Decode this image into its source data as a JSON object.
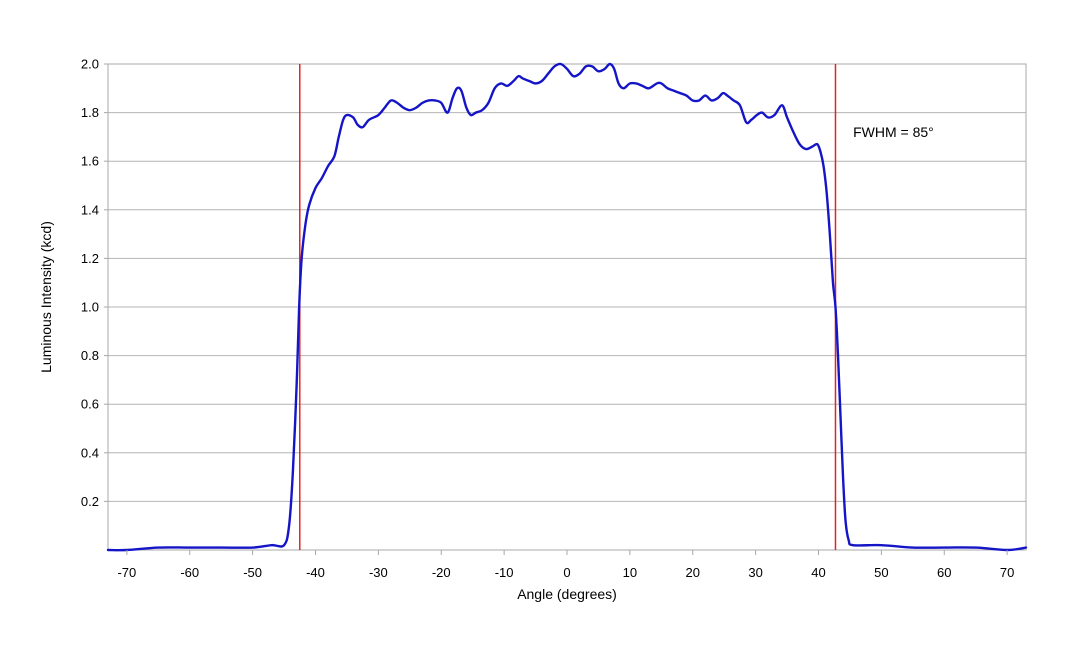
{
  "chart_data": {
    "type": "line",
    "title": "",
    "xlabel": "Angle (degrees)",
    "ylabel": "Luminous Intensity (kcd)",
    "xlim": [
      -73,
      73
    ],
    "ylim": [
      0,
      2.0
    ],
    "grid": "horizontal",
    "legend": "none",
    "x_ticks": [
      -70,
      -60,
      -50,
      -40,
      -30,
      -20,
      -10,
      0,
      10,
      20,
      30,
      40,
      50,
      60,
      70
    ],
    "x_tick_labels": [
      "-70",
      "-60",
      "-50",
      "-40",
      "-30",
      "-20",
      "-10",
      "0",
      "10",
      "20",
      "30",
      "40",
      "50",
      "60",
      "70"
    ],
    "y_ticks": [
      0.2,
      0.4,
      0.6,
      0.8,
      1.0,
      1.2,
      1.4,
      1.6,
      1.8,
      2.0
    ],
    "y_tick_labels": [
      "0.2",
      "0.4",
      "0.6",
      "0.8",
      "1.0",
      "1.2",
      "1.4",
      "1.6",
      "1.8",
      "2.0"
    ],
    "series": [
      {
        "color": "#1515c8",
        "points": [
          [
            -73,
            0.0
          ],
          [
            -70,
            0.0
          ],
          [
            -65,
            0.01
          ],
          [
            -60,
            0.01
          ],
          [
            -55,
            0.01
          ],
          [
            -50,
            0.01
          ],
          [
            -47,
            0.02
          ],
          [
            -45,
            0.02
          ],
          [
            -44.2,
            0.1
          ],
          [
            -43.6,
            0.32
          ],
          [
            -43,
            0.68
          ],
          [
            -42.6,
            1.0
          ],
          [
            -42.2,
            1.2
          ],
          [
            -41.6,
            1.34
          ],
          [
            -41,
            1.42
          ],
          [
            -40,
            1.49
          ],
          [
            -39,
            1.53
          ],
          [
            -38,
            1.58
          ],
          [
            -37,
            1.62
          ],
          [
            -36.3,
            1.7
          ],
          [
            -35.6,
            1.77
          ],
          [
            -35,
            1.79
          ],
          [
            -34,
            1.78
          ],
          [
            -33.3,
            1.75
          ],
          [
            -32.5,
            1.74
          ],
          [
            -31.5,
            1.77
          ],
          [
            -30,
            1.79
          ],
          [
            -29,
            1.82
          ],
          [
            -28,
            1.85
          ],
          [
            -27,
            1.84
          ],
          [
            -26,
            1.82
          ],
          [
            -25,
            1.81
          ],
          [
            -24,
            1.82
          ],
          [
            -23,
            1.84
          ],
          [
            -22,
            1.85
          ],
          [
            -21,
            1.85
          ],
          [
            -20,
            1.84
          ],
          [
            -19,
            1.8
          ],
          [
            -18.2,
            1.86
          ],
          [
            -17.5,
            1.9
          ],
          [
            -16.8,
            1.89
          ],
          [
            -16,
            1.82
          ],
          [
            -15.3,
            1.79
          ],
          [
            -14.5,
            1.8
          ],
          [
            -13.5,
            1.81
          ],
          [
            -12.5,
            1.84
          ],
          [
            -11.5,
            1.9
          ],
          [
            -10.5,
            1.92
          ],
          [
            -9.5,
            1.91
          ],
          [
            -8.5,
            1.93
          ],
          [
            -7.7,
            1.95
          ],
          [
            -7,
            1.94
          ],
          [
            -6,
            1.93
          ],
          [
            -5,
            1.92
          ],
          [
            -4,
            1.93
          ],
          [
            -3,
            1.96
          ],
          [
            -2,
            1.99
          ],
          [
            -1,
            2.0
          ],
          [
            0,
            1.98
          ],
          [
            1,
            1.95
          ],
          [
            2,
            1.96
          ],
          [
            3,
            1.99
          ],
          [
            4,
            1.99
          ],
          [
            5,
            1.97
          ],
          [
            6,
            1.98
          ],
          [
            6.8,
            2.0
          ],
          [
            7.5,
            1.98
          ],
          [
            8.2,
            1.92
          ],
          [
            9,
            1.9
          ],
          [
            10,
            1.92
          ],
          [
            11,
            1.92
          ],
          [
            12,
            1.91
          ],
          [
            13,
            1.9
          ],
          [
            14.3,
            1.92
          ],
          [
            15,
            1.92
          ],
          [
            16,
            1.9
          ],
          [
            17,
            1.89
          ],
          [
            18,
            1.88
          ],
          [
            19,
            1.87
          ],
          [
            20,
            1.85
          ],
          [
            21,
            1.85
          ],
          [
            22,
            1.87
          ],
          [
            23,
            1.85
          ],
          [
            24,
            1.86
          ],
          [
            24.8,
            1.88
          ],
          [
            25.5,
            1.87
          ],
          [
            26.5,
            1.85
          ],
          [
            27.5,
            1.83
          ],
          [
            28.5,
            1.76
          ],
          [
            29.3,
            1.77
          ],
          [
            30.2,
            1.79
          ],
          [
            31,
            1.8
          ],
          [
            32,
            1.78
          ],
          [
            33,
            1.79
          ],
          [
            34.2,
            1.83
          ],
          [
            35,
            1.78
          ],
          [
            36,
            1.72
          ],
          [
            37,
            1.67
          ],
          [
            38,
            1.65
          ],
          [
            39,
            1.66
          ],
          [
            39.8,
            1.67
          ],
          [
            40.3,
            1.64
          ],
          [
            40.8,
            1.58
          ],
          [
            41.3,
            1.47
          ],
          [
            41.8,
            1.3
          ],
          [
            42.3,
            1.1
          ],
          [
            42.7,
            1.0
          ],
          [
            43.1,
            0.8
          ],
          [
            43.5,
            0.55
          ],
          [
            43.9,
            0.3
          ],
          [
            44.3,
            0.12
          ],
          [
            44.8,
            0.04
          ],
          [
            45.5,
            0.02
          ],
          [
            50,
            0.02
          ],
          [
            55,
            0.01
          ],
          [
            60,
            0.01
          ],
          [
            65,
            0.01
          ],
          [
            70,
            0.0
          ],
          [
            73,
            0.01
          ]
        ]
      }
    ],
    "vertical_lines": [
      {
        "x": -42.5,
        "color": "#e02424"
      },
      {
        "x": 42.7,
        "color": "#e02424"
      }
    ],
    "annotations": [
      {
        "text": "FWHM = 85°",
        "x": 45.5,
        "y": 1.7
      }
    ]
  }
}
